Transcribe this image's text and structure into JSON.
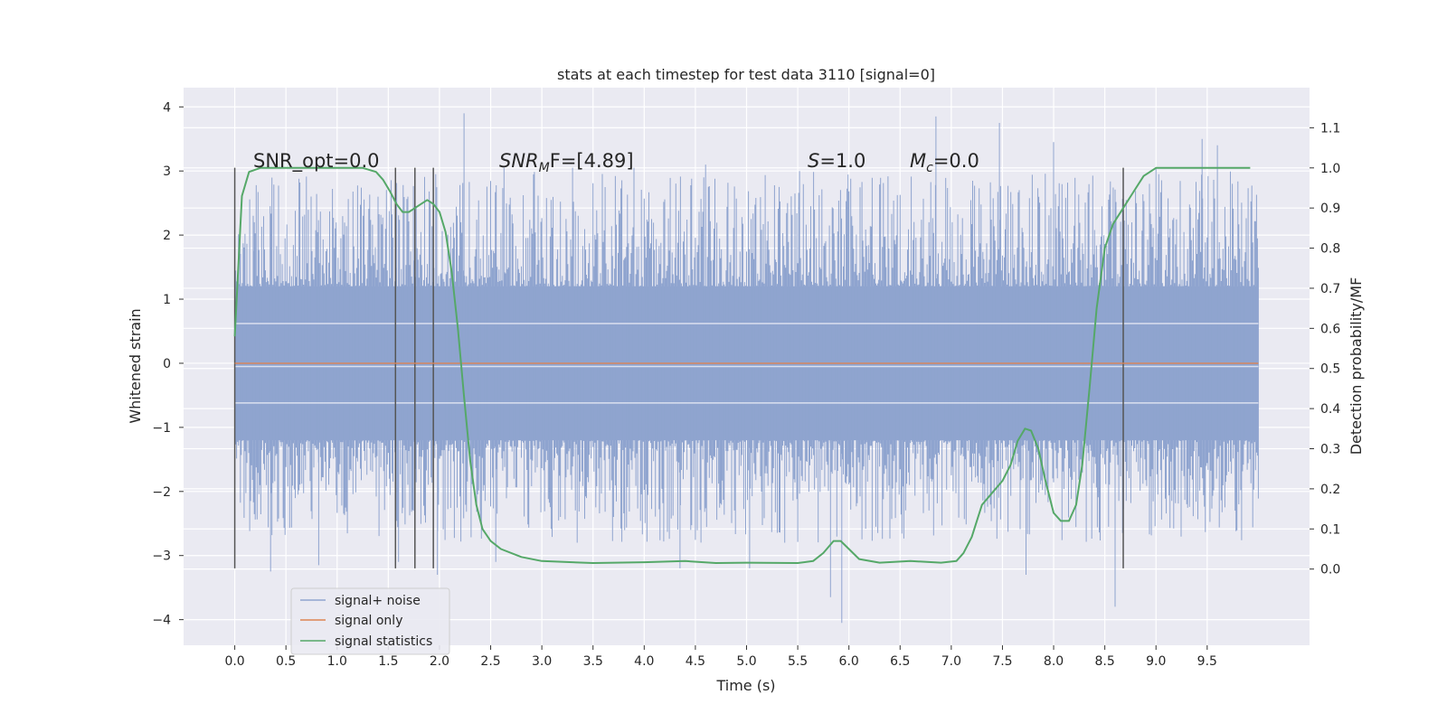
{
  "chart_data": {
    "type": "line",
    "title": "stats at each timestep for test data 3110 [signal=0]",
    "xlabel": "Time (s)",
    "ylabel": "Whitened strain",
    "y2label": "Detection probability/MF",
    "xlim": [
      -0.5,
      10.5
    ],
    "ylim": [
      -4.4,
      4.3
    ],
    "y2lim": [
      -0.19,
      1.2
    ],
    "grid": true,
    "legend_position": "lower-left",
    "x_ticks": [
      "0.0",
      "0.5",
      "1.0",
      "1.5",
      "2.0",
      "2.5",
      "3.0",
      "3.5",
      "4.0",
      "4.5",
      "5.0",
      "5.5",
      "6.0",
      "6.5",
      "7.0",
      "7.5",
      "8.0",
      "8.5",
      "9.0",
      "9.5"
    ],
    "y_ticks": [
      "4",
      "3",
      "2",
      "1",
      "0",
      "−1",
      "−2",
      "−3",
      "−4"
    ],
    "y2_ticks": [
      "0.0",
      "0.1",
      "0.2",
      "0.3",
      "0.4",
      "0.5",
      "0.6",
      "0.7",
      "0.8",
      "0.9",
      "1.0",
      "1.1"
    ],
    "annotations": {
      "snr_opt": "SNR_opt=0.0",
      "snr_mf_main": "SNR",
      "snr_mf_sub": "M",
      "snr_mf_rest": "F=[4.89]",
      "s_main": "S",
      "s_rest": "=1.0",
      "mc_main": "M",
      "mc_sub": "c",
      "mc_rest": "=0.0"
    },
    "vertical_lines_x": [
      0.0,
      1.57,
      1.76,
      1.94,
      8.68
    ],
    "vertical_lines_range": [
      -3.2,
      3.05
    ],
    "series": [
      {
        "name": "signal+ noise",
        "color": "#8fa4cf",
        "t_range": [
          0.0,
          10.0
        ],
        "envelope": {
          "typical_abs": 1.2,
          "spike_top": 3.9,
          "spike_bottom": -4.05
        },
        "spikes": [
          {
            "x": 0.05,
            "y": 2.1
          },
          {
            "x": 0.18,
            "y": 2.3
          },
          {
            "x": 0.35,
            "y": -3.25
          },
          {
            "x": 0.82,
            "y": -3.15
          },
          {
            "x": 1.4,
            "y": 2.6
          },
          {
            "x": 1.6,
            "y": -3.1
          },
          {
            "x": 1.98,
            "y": -3.3
          },
          {
            "x": 2.24,
            "y": 3.9
          },
          {
            "x": 2.55,
            "y": -3.1
          },
          {
            "x": 2.63,
            "y": 3.05
          },
          {
            "x": 3.3,
            "y": 3.05
          },
          {
            "x": 3.9,
            "y": 3.05
          },
          {
            "x": 4.35,
            "y": -3.2
          },
          {
            "x": 4.6,
            "y": 3.1
          },
          {
            "x": 5.03,
            "y": -3.2
          },
          {
            "x": 5.82,
            "y": -3.65
          },
          {
            "x": 5.93,
            "y": -4.05
          },
          {
            "x": 6.85,
            "y": 3.85
          },
          {
            "x": 7.47,
            "y": 3.75
          },
          {
            "x": 7.73,
            "y": -3.3
          },
          {
            "x": 8.0,
            "y": 3.45
          },
          {
            "x": 8.6,
            "y": -3.8
          },
          {
            "x": 9.0,
            "y": 3.05
          },
          {
            "x": 9.45,
            "y": 3.5
          },
          {
            "x": 9.6,
            "y": 3.4
          }
        ]
      },
      {
        "name": "signal only",
        "color": "#dd8452",
        "points": [
          [
            0.0,
            0.0
          ],
          [
            10.0,
            0.0
          ]
        ]
      },
      {
        "name": "signal statistics",
        "color": "#55a868",
        "axis": "right",
        "points": [
          [
            0.0,
            0.58
          ],
          [
            0.07,
            0.93
          ],
          [
            0.14,
            0.99
          ],
          [
            0.25,
            1.0
          ],
          [
            0.5,
            1.0
          ],
          [
            1.0,
            1.0
          ],
          [
            1.25,
            1.0
          ],
          [
            1.38,
            0.99
          ],
          [
            1.45,
            0.97
          ],
          [
            1.52,
            0.94
          ],
          [
            1.58,
            0.91
          ],
          [
            1.64,
            0.89
          ],
          [
            1.7,
            0.89
          ],
          [
            1.76,
            0.9
          ],
          [
            1.82,
            0.91
          ],
          [
            1.88,
            0.92
          ],
          [
            1.94,
            0.91
          ],
          [
            2.0,
            0.89
          ],
          [
            2.06,
            0.84
          ],
          [
            2.12,
            0.74
          ],
          [
            2.18,
            0.6
          ],
          [
            2.24,
            0.43
          ],
          [
            2.3,
            0.27
          ],
          [
            2.36,
            0.16
          ],
          [
            2.42,
            0.1
          ],
          [
            2.5,
            0.07
          ],
          [
            2.6,
            0.05
          ],
          [
            2.8,
            0.03
          ],
          [
            3.0,
            0.02
          ],
          [
            3.5,
            0.015
          ],
          [
            4.0,
            0.017
          ],
          [
            4.4,
            0.02
          ],
          [
            4.7,
            0.015
          ],
          [
            5.0,
            0.016
          ],
          [
            5.5,
            0.015
          ],
          [
            5.65,
            0.02
          ],
          [
            5.75,
            0.04
          ],
          [
            5.85,
            0.07
          ],
          [
            5.92,
            0.07
          ],
          [
            6.0,
            0.05
          ],
          [
            6.1,
            0.025
          ],
          [
            6.3,
            0.016
          ],
          [
            6.6,
            0.02
          ],
          [
            6.9,
            0.016
          ],
          [
            7.05,
            0.02
          ],
          [
            7.12,
            0.04
          ],
          [
            7.2,
            0.08
          ],
          [
            7.3,
            0.16
          ],
          [
            7.4,
            0.19
          ],
          [
            7.5,
            0.22
          ],
          [
            7.58,
            0.26
          ],
          [
            7.65,
            0.32
          ],
          [
            7.72,
            0.35
          ],
          [
            7.78,
            0.345
          ],
          [
            7.85,
            0.3
          ],
          [
            7.92,
            0.22
          ],
          [
            8.0,
            0.14
          ],
          [
            8.07,
            0.12
          ],
          [
            8.15,
            0.12
          ],
          [
            8.22,
            0.16
          ],
          [
            8.28,
            0.26
          ],
          [
            8.35,
            0.45
          ],
          [
            8.42,
            0.65
          ],
          [
            8.5,
            0.8
          ],
          [
            8.58,
            0.86
          ],
          [
            8.68,
            0.9
          ],
          [
            8.78,
            0.94
          ],
          [
            8.88,
            0.98
          ],
          [
            9.0,
            1.0
          ],
          [
            9.2,
            1.0
          ],
          [
            9.5,
            1.0
          ],
          [
            9.75,
            1.0
          ],
          [
            9.92,
            1.0
          ]
        ]
      }
    ]
  }
}
